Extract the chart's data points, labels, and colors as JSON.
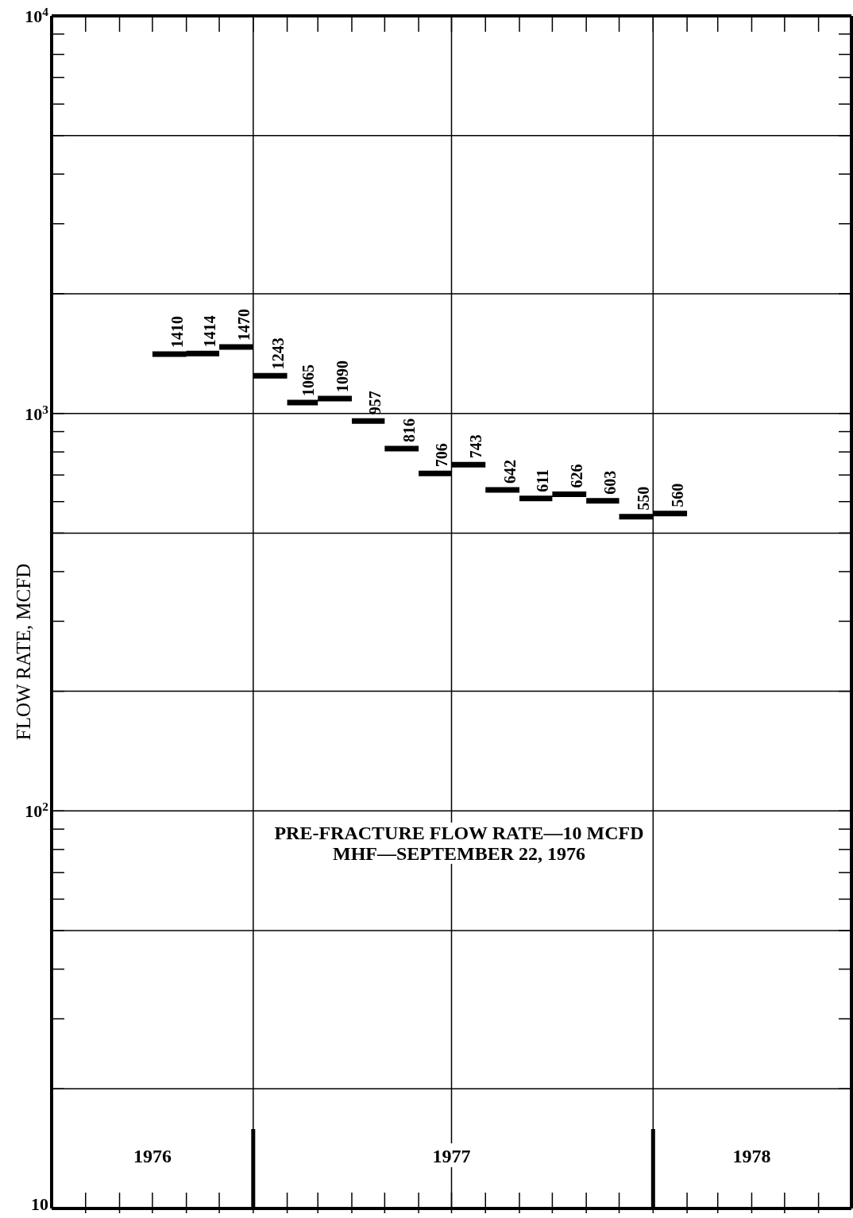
{
  "chart_data": {
    "type": "step",
    "ylabel": "FLOW RATE, MCFD",
    "annotations": [
      "PRE-FRACTURE FLOW RATE—10 MCFD",
      "MHF—SEPTEMBER 22, 1976"
    ],
    "x": [
      "1976-10",
      "1976-11",
      "1976-12",
      "1977-01",
      "1977-02",
      "1977-03",
      "1977-04",
      "1977-05",
      "1977-06",
      "1977-07",
      "1977-08",
      "1977-09",
      "1977-10",
      "1977-11",
      "1977-12",
      "1978-01"
    ],
    "series": [
      {
        "color": "#000000",
        "values": [
          1410,
          1414,
          1470,
          1243,
          1065,
          1090,
          957,
          816,
          706,
          743,
          642,
          611,
          626,
          603,
          550,
          560
        ]
      }
    ],
    "xlim": [
      "1976-07",
      "1978-07"
    ],
    "xticks": [
      {
        "value": "1976-08",
        "label": null
      },
      {
        "value": "1976-09",
        "label": null
      },
      {
        "value": "1976-10",
        "label": "1976"
      },
      {
        "value": "1976-11",
        "label": null
      },
      {
        "value": "1976-12",
        "label": null
      },
      {
        "value": "1977-01",
        "label": null
      },
      {
        "value": "1977-02",
        "label": null
      },
      {
        "value": "1977-03",
        "label": null
      },
      {
        "value": "1977-04",
        "label": null
      },
      {
        "value": "1977-05",
        "label": null
      },
      {
        "value": "1977-06",
        "label": null
      },
      {
        "value": "1977-07",
        "label": "1977"
      },
      {
        "value": "1977-08",
        "label": null
      },
      {
        "value": "1977-09",
        "label": null
      },
      {
        "value": "1977-10",
        "label": null
      },
      {
        "value": "1977-11",
        "label": null
      },
      {
        "value": "1977-12",
        "label": null
      },
      {
        "value": "1978-01",
        "label": null
      },
      {
        "value": "1978-02",
        "label": null
      },
      {
        "value": "1978-03",
        "label": null
      },
      {
        "value": "1978-04",
        "label": "1978"
      },
      {
        "value": "1978-05",
        "label": null
      },
      {
        "value": "1978-06",
        "label": null
      }
    ],
    "ylim": [
      10,
      10000
    ],
    "yticks": [
      10,
      {
        "value": 20,
        "label": null
      },
      {
        "value": 30,
        "label": null
      },
      {
        "value": 40,
        "label": null
      },
      {
        "value": 50,
        "label": null
      },
      {
        "value": 60,
        "label": null
      },
      {
        "value": 70,
        "label": null
      },
      {
        "value": 80,
        "label": null
      },
      {
        "value": 90,
        "label": null
      },
      {
        "value": 100,
        "label": "10$^{2}$"
      },
      {
        "value": 200,
        "label": null
      },
      {
        "value": 300,
        "label": null
      },
      {
        "value": 400,
        "label": null
      },
      {
        "value": 500,
        "label": null
      },
      {
        "value": 600,
        "label": null
      },
      {
        "value": 700,
        "label": null
      },
      {
        "value": 800,
        "label": null
      },
      {
        "value": 900,
        "label": null
      },
      {
        "value": 1000,
        "label": "10$^{3}$"
      },
      {
        "value": 2000,
        "label": null
      },
      {
        "value": 3000,
        "label": null
      },
      {
        "value": 4000,
        "label": null
      },
      {
        "value": 5000,
        "label": null
      },
      {
        "value": 6000,
        "label": null
      },
      {
        "value": 7000,
        "label": null
      },
      {
        "value": 8000,
        "label": null
      },
      {
        "value": 9000,
        "label": null
      },
      {
        "value": 10000,
        "label": "10$^{4}$"
      }
    ],
    "log": true,
    "grid": true,
    "data_labels": true,
    "line_style": "solid",
    "marker": "none"
  }
}
